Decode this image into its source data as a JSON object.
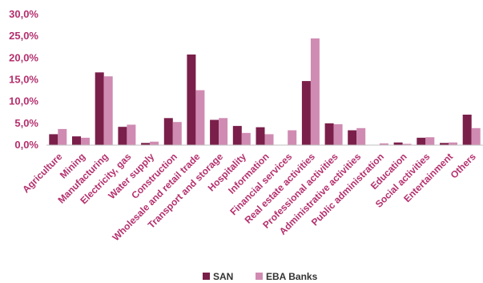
{
  "chart_data": {
    "type": "bar",
    "categories": [
      "Agriculture",
      "Mining",
      "Manufacturing",
      "Electricity, gas",
      "Water supply",
      "Construction",
      "Wholesale and retail trade",
      "Transport and storage",
      "Hospitality",
      "Information",
      "Financial services",
      "Real estate activities",
      "Professional activities",
      "Administrative activities",
      "Public administration",
      "Education",
      "Social activities",
      "Entertainment",
      "Others"
    ],
    "series": [
      {
        "name": "SAN",
        "color": "#7a1f4a",
        "values": [
          2.5,
          2.0,
          16.7,
          4.2,
          0.5,
          6.2,
          20.8,
          5.8,
          4.4,
          4.1,
          0.0,
          14.7,
          5.0,
          3.4,
          0.0,
          0.6,
          1.7,
          0.5,
          7.0
        ]
      },
      {
        "name": "EBA Banks",
        "color": "#d08bb2",
        "values": [
          3.7,
          1.7,
          15.8,
          4.7,
          0.8,
          5.3,
          12.6,
          6.2,
          2.8,
          2.5,
          3.4,
          24.5,
          4.8,
          3.9,
          0.4,
          0.3,
          1.8,
          0.6,
          3.9
        ]
      }
    ],
    "yticks": [
      "0,0%",
      "5,0%",
      "10,0%",
      "15,0%",
      "20,0%",
      "25,0%",
      "30,0%"
    ],
    "ylim": [
      0,
      30
    ],
    "grid": false,
    "legend_position": "bottom",
    "label_color": "#b4306e",
    "axis_color": "#bfbfbf"
  }
}
